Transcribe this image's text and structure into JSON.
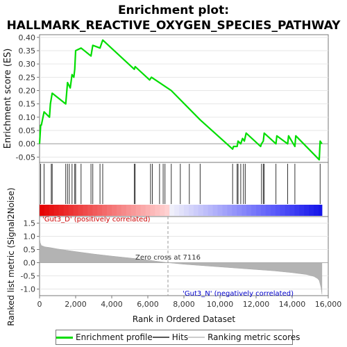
{
  "title_line1": "Enrichment plot:",
  "title_line2": "HALLMARK_REACTIVE_OXYGEN_SPECIES_PATHWAY",
  "legend": {
    "items": [
      {
        "label": "Enrichment profile",
        "color": "#00dd00"
      },
      {
        "label": "Hits",
        "color": "#555555"
      },
      {
        "label": "Ranking metric scores",
        "color": "#cccccc"
      }
    ]
  },
  "chart_data": [
    {
      "type": "line",
      "ylabel": "Enrichment score (ES)",
      "ylim": [
        -0.07,
        0.41
      ],
      "yticks": [
        "0.40",
        "0.35",
        "0.30",
        "0.25",
        "0.20",
        "0.15",
        "0.10",
        "0.05",
        "0.00",
        "-0.05"
      ],
      "ytick_values": [
        0.4,
        0.35,
        0.3,
        0.25,
        0.2,
        0.15,
        0.1,
        0.05,
        0.0,
        -0.05
      ],
      "xlim": [
        0,
        16000
      ],
      "color": "#00dd00",
      "x": [
        0,
        60,
        100,
        250,
        400,
        550,
        600,
        700,
        1450,
        1500,
        1550,
        1700,
        1800,
        1900,
        1950,
        2000,
        2300,
        2850,
        2950,
        3350,
        3500,
        5250,
        5300,
        6100,
        6200,
        7300,
        8900,
        10700,
        10750,
        10950,
        11000,
        11150,
        11250,
        11350,
        11450,
        12250,
        12300,
        12400,
        12450,
        13100,
        13150,
        13750,
        13800,
        14150,
        14200,
        15500,
        15550,
        15650
      ],
      "y": [
        0.0,
        0.07,
        0.07,
        0.12,
        0.11,
        0.1,
        0.15,
        0.19,
        0.15,
        0.19,
        0.23,
        0.21,
        0.26,
        0.25,
        0.28,
        0.35,
        0.36,
        0.33,
        0.37,
        0.36,
        0.39,
        0.28,
        0.29,
        0.24,
        0.25,
        0.2,
        0.09,
        -0.02,
        -0.01,
        -0.01,
        0.01,
        0.0,
        0.02,
        0.01,
        0.04,
        -0.01,
        0.0,
        0.01,
        0.04,
        0.0,
        0.03,
        0.0,
        0.03,
        -0.01,
        0.03,
        -0.06,
        0.01,
        0.0
      ],
      "hits": [
        60,
        250,
        650,
        700,
        1450,
        1550,
        1650,
        1800,
        1950,
        2000,
        2300,
        2850,
        2950,
        3350,
        3500,
        5250,
        5300,
        6150,
        6250,
        6650,
        6850,
        6950,
        7300,
        7800,
        8300,
        8900,
        10700,
        10950,
        11000,
        11150,
        11300,
        11400,
        12300,
        12400,
        12450,
        13100,
        13750,
        14150,
        15550
      ]
    },
    {
      "type": "area",
      "ylabel": "Ranked list metric (Signal2Noise)",
      "xlabel": "Rank in Ordered Dataset",
      "ylim": [
        -1.25,
        1.75
      ],
      "yticks": [
        "1.5",
        "1.0",
        "0.5",
        "0.0",
        "-0.5",
        "-1.0"
      ],
      "ytick_values": [
        1.5,
        1.0,
        0.5,
        0.0,
        -0.5,
        -1.0
      ],
      "xticks": [
        "0",
        "2,000",
        "4,000",
        "6,000",
        "8,000",
        "10,000",
        "12,000",
        "14,000",
        "16,000"
      ],
      "xtick_values": [
        0,
        2000,
        4000,
        6000,
        8000,
        10000,
        12000,
        14000,
        16000
      ],
      "xlim": [
        0,
        16000
      ],
      "x": [
        0,
        40,
        100,
        300,
        600,
        1000,
        2000,
        3000,
        4000,
        5000,
        6000,
        7116,
        8000,
        9000,
        10000,
        11000,
        12000,
        13000,
        14000,
        14800,
        15200,
        15400,
        15500,
        15600,
        15650
      ],
      "y": [
        0.95,
        0.75,
        0.65,
        0.6,
        0.57,
        0.52,
        0.42,
        0.33,
        0.25,
        0.18,
        0.1,
        0.0,
        -0.06,
        -0.11,
        -0.16,
        -0.21,
        -0.26,
        -0.31,
        -0.38,
        -0.45,
        -0.52,
        -0.6,
        -0.68,
        -0.95,
        -1.2
      ],
      "zero_cross_rank": 7116,
      "annotations": {
        "pos_label": "'Gut3_D' (positively correlated)",
        "neg_label": "'Gut3_N' (negatively correlated)",
        "zero_cross": "Zero cross at 7116"
      },
      "pos_color": "#cc0000",
      "neg_color": "#0000cc"
    }
  ]
}
